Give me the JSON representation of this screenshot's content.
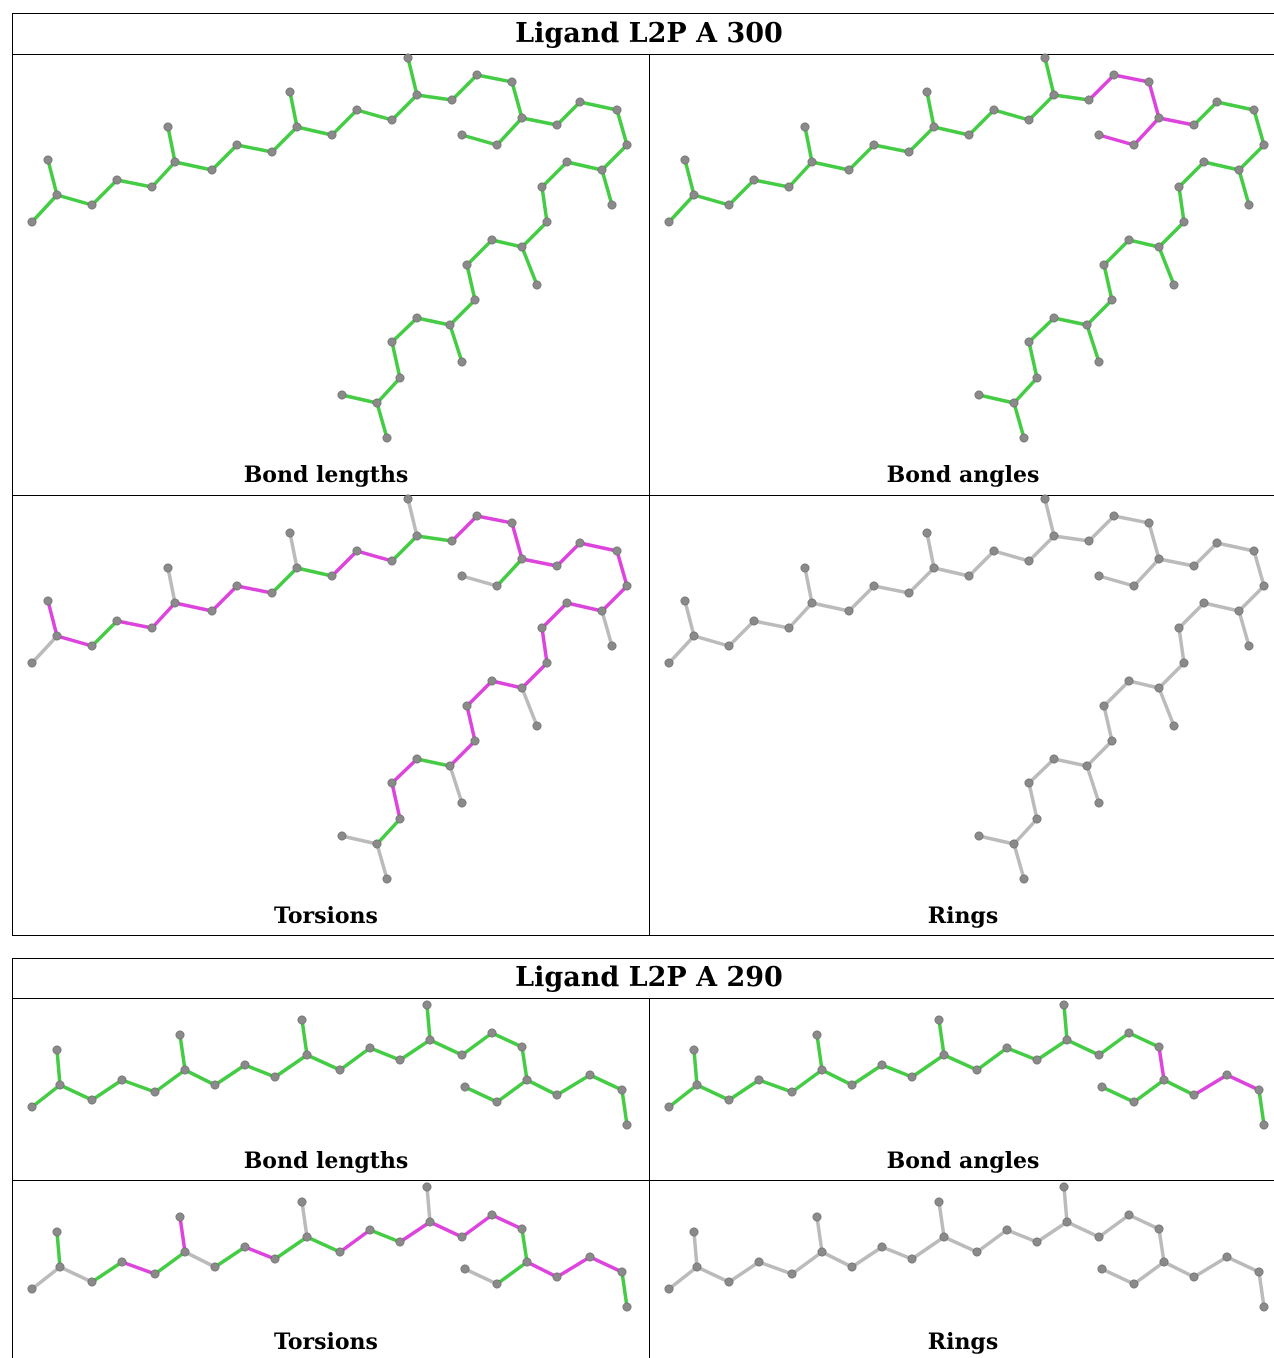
{
  "tables": [
    {
      "title": "Ligand L2P A 300",
      "cells": [
        "Bond lengths",
        "Bond angles",
        "Torsions",
        "Rings"
      ]
    },
    {
      "title": "Ligand L2P A 290",
      "cells": [
        "Bond lengths",
        "Bond angles",
        "Torsions",
        "Rings"
      ]
    }
  ]
}
